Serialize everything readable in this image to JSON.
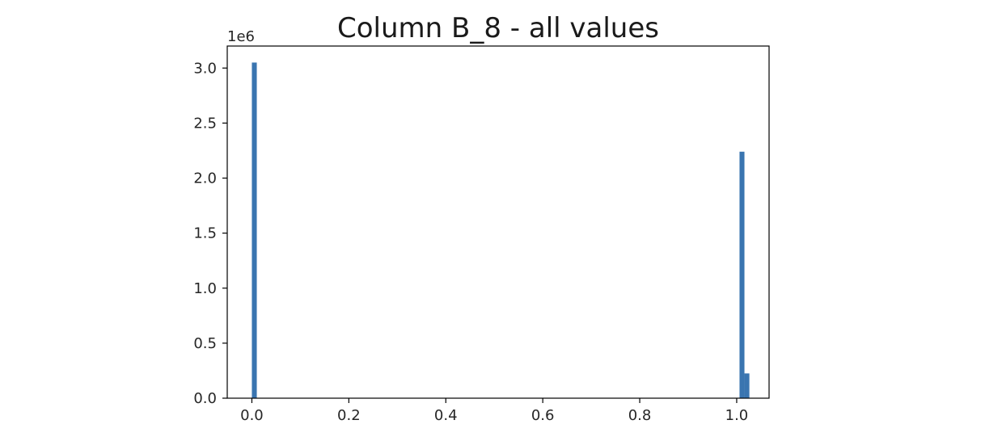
{
  "chart_data": {
    "type": "bar",
    "title": "Column B_8 - all values",
    "xlabel": "",
    "ylabel": "",
    "y_offset_label": "1e6",
    "xlim": [
      -0.0508,
      1.0668
    ],
    "ylim": [
      0,
      3200000
    ],
    "x_ticks": [
      0.0,
      0.2,
      0.4,
      0.6,
      0.8,
      1.0
    ],
    "x_tick_labels": [
      "0.0",
      "0.2",
      "0.4",
      "0.6",
      "0.8",
      "1.0"
    ],
    "y_ticks": [
      0,
      500000,
      1000000,
      1500000,
      2000000,
      2500000,
      3000000
    ],
    "y_tick_labels": [
      "0.0",
      "0.5",
      "1.0",
      "1.5",
      "2.0",
      "2.5",
      "3.0"
    ],
    "bin_width": 0.01016,
    "bins": [
      {
        "x": 0.0,
        "value": 3050000
      },
      {
        "x": 1.00584,
        "value": 2240000
      },
      {
        "x": 1.016,
        "value": 225000
      }
    ],
    "bar_color": "#3a75b0",
    "grid": false,
    "legend": "none"
  }
}
